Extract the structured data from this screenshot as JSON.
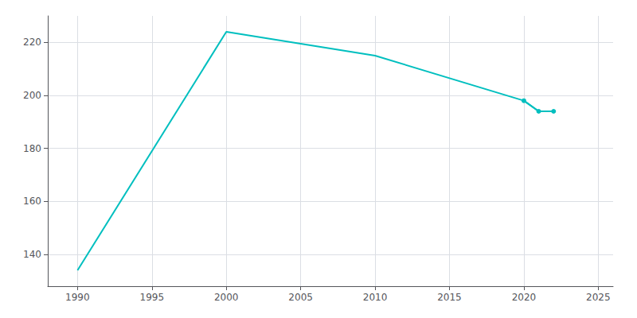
{
  "chart_data": {
    "type": "line",
    "series": [
      {
        "x": [
          1990,
          2000,
          2010,
          2020,
          2021,
          2022
        ],
        "values": [
          134,
          224,
          215,
          198,
          194,
          194
        ],
        "color": "#00BFBF"
      },
      {
        "x": [
          2020,
          2021,
          2022
        ],
        "values": [
          198,
          194,
          194
        ],
        "color": "#00BFBF",
        "marker": "circle"
      }
    ],
    "xlim": [
      1988,
      2026
    ],
    "xticks": [
      1990,
      1995,
      2000,
      2005,
      2010,
      2015,
      2020,
      2025
    ],
    "ylim": [
      128,
      230
    ],
    "yticks": [
      140,
      160,
      180,
      200,
      220
    ],
    "grid": true
  }
}
